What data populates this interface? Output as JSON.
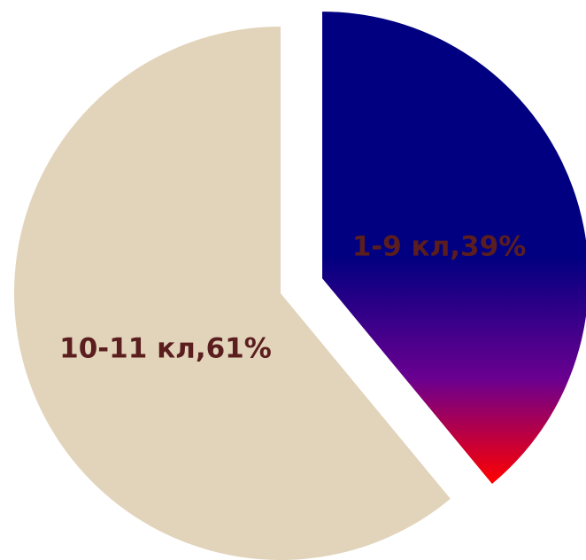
{
  "chart_data": {
    "type": "pie",
    "title": "",
    "slices": [
      {
        "label": "1-9 кл,39%",
        "value": 39,
        "color_top": "#000080",
        "color_mid": "#6a0090",
        "color_bottom": "#ff0000",
        "exploded": true
      },
      {
        "label": "10-11 кл,61%",
        "value": 61,
        "color": "#e2d4bb",
        "exploded": false
      }
    ],
    "label_color": "#5a1e1e",
    "legend": "none"
  }
}
